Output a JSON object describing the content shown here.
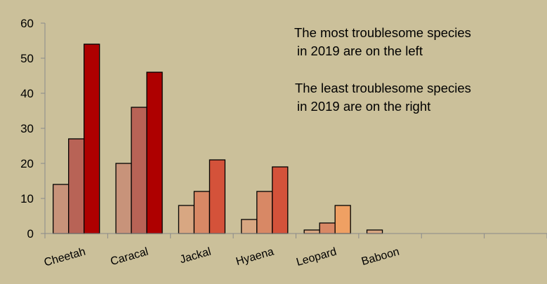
{
  "chart_data": {
    "type": "bar",
    "title": "",
    "xlabel": "",
    "ylabel": "",
    "ylim": [
      0,
      60
    ],
    "yticks": [
      0,
      10,
      20,
      30,
      40,
      50,
      60
    ],
    "grid": false,
    "legend": "none",
    "categories": [
      "Cheetah",
      "Caracal",
      "Jackal",
      "Hyaena",
      "Leopard",
      "Baboon",
      "",
      ""
    ],
    "series": [
      {
        "values": [
          14,
          20,
          8,
          4,
          1,
          1,
          0,
          0
        ]
      },
      {
        "values": [
          27,
          36,
          12,
          12,
          3,
          0,
          0,
          0
        ]
      },
      {
        "values": [
          54,
          46,
          21,
          19,
          8,
          0,
          0,
          0
        ]
      }
    ],
    "bar_colors": [
      [
        "#C8937A",
        "#B86356",
        "#AE0000"
      ],
      [
        "#C8937A",
        "#B86356",
        "#AE0000"
      ],
      [
        "#D8A782",
        "#D88865",
        "#D4523A"
      ],
      [
        "#D8A782",
        "#D88865",
        "#D4523A"
      ],
      [
        "#D8A782",
        "#D88865",
        "#EFA063"
      ],
      [
        "#D8A782",
        "#D88865",
        "#EFA063"
      ],
      [
        "#D8A782",
        "#D88865",
        "#EFA063"
      ],
      [
        "#D8A782",
        "#D88865",
        "#EFA063"
      ]
    ],
    "annotations": [
      "The most troublesome species",
      "in 2019 are on the left",
      "The least troublesome species",
      "in 2019 are on the right"
    ]
  }
}
